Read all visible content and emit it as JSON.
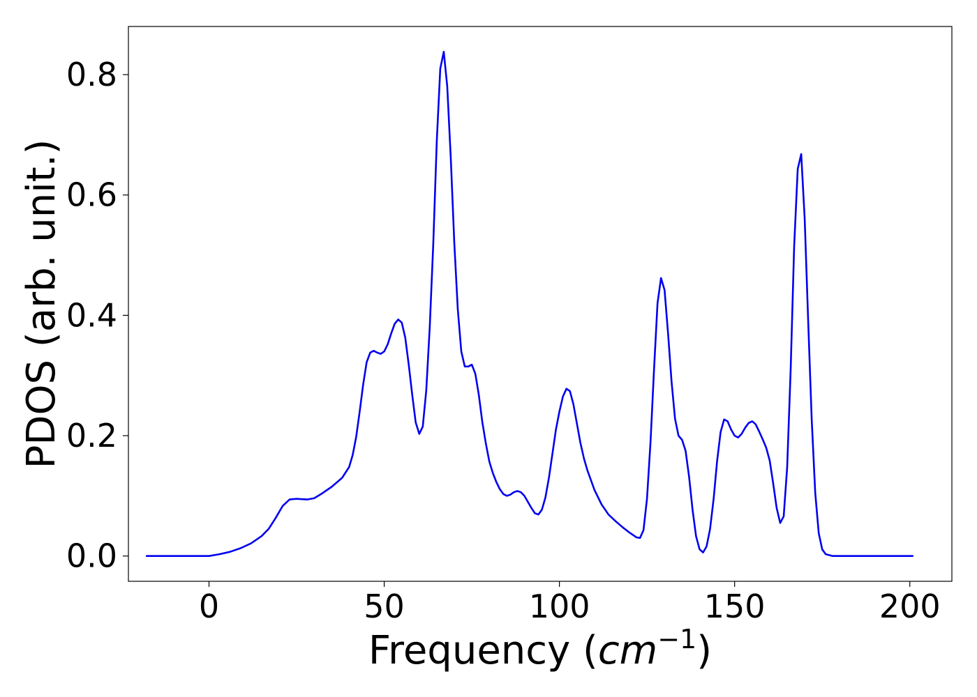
{
  "chart_data": {
    "type": "line",
    "title": "",
    "xlabel": "Frequency (",
    "xlabel_math": "cm",
    "xlabel_exp": "−1",
    "xlabel_close": ")",
    "ylabel": "PDOS (arb. unit.)",
    "xlim": [
      -23,
      212
    ],
    "ylim": [
      -0.042,
      0.88
    ],
    "xticks": [
      0,
      50,
      100,
      150,
      200
    ],
    "yticks": [
      0.0,
      0.2,
      0.4,
      0.6,
      0.8
    ],
    "xtick_labels": [
      "0",
      "50",
      "100",
      "150",
      "200"
    ],
    "ytick_labels": [
      "0.0",
      "0.2",
      "0.4",
      "0.6",
      "0.8"
    ],
    "grid": false,
    "legend": "none",
    "series": [
      {
        "color": "#0000ee",
        "points": [
          [
            -18,
            0
          ],
          [
            -10,
            0
          ],
          [
            0,
            0
          ],
          [
            3,
            0.003
          ],
          [
            6,
            0.007
          ],
          [
            9,
            0.013
          ],
          [
            12,
            0.021
          ],
          [
            15,
            0.033
          ],
          [
            17,
            0.045
          ],
          [
            19,
            0.063
          ],
          [
            21,
            0.083
          ],
          [
            23,
            0.094
          ],
          [
            25,
            0.095
          ],
          [
            28,
            0.094
          ],
          [
            30,
            0.096
          ],
          [
            32,
            0.103
          ],
          [
            35,
            0.115
          ],
          [
            38,
            0.13
          ],
          [
            40,
            0.148
          ],
          [
            41,
            0.168
          ],
          [
            42,
            0.198
          ],
          [
            43,
            0.24
          ],
          [
            44,
            0.285
          ],
          [
            45,
            0.322
          ],
          [
            46,
            0.338
          ],
          [
            47,
            0.341
          ],
          [
            48,
            0.338
          ],
          [
            49,
            0.336
          ],
          [
            50,
            0.34
          ],
          [
            51,
            0.352
          ],
          [
            52,
            0.37
          ],
          [
            53,
            0.386
          ],
          [
            54,
            0.393
          ],
          [
            55,
            0.388
          ],
          [
            56,
            0.363
          ],
          [
            57,
            0.318
          ],
          [
            58,
            0.268
          ],
          [
            59,
            0.222
          ],
          [
            60,
            0.203
          ],
          [
            61,
            0.215
          ],
          [
            62,
            0.275
          ],
          [
            63,
            0.38
          ],
          [
            64,
            0.52
          ],
          [
            65,
            0.69
          ],
          [
            66,
            0.81
          ],
          [
            67,
            0.838
          ],
          [
            68,
            0.78
          ],
          [
            69,
            0.66
          ],
          [
            70,
            0.52
          ],
          [
            71,
            0.41
          ],
          [
            72,
            0.34
          ],
          [
            73,
            0.315
          ],
          [
            74,
            0.315
          ],
          [
            75,
            0.318
          ],
          [
            76,
            0.303
          ],
          [
            77,
            0.268
          ],
          [
            78,
            0.223
          ],
          [
            79,
            0.187
          ],
          [
            80,
            0.157
          ],
          [
            81,
            0.138
          ],
          [
            82,
            0.123
          ],
          [
            83,
            0.111
          ],
          [
            84,
            0.103
          ],
          [
            85,
            0.1
          ],
          [
            86,
            0.102
          ],
          [
            87,
            0.106
          ],
          [
            88,
            0.108
          ],
          [
            89,
            0.106
          ],
          [
            90,
            0.1
          ],
          [
            91,
            0.09
          ],
          [
            92,
            0.08
          ],
          [
            93,
            0.071
          ],
          [
            94,
            0.069
          ],
          [
            95,
            0.077
          ],
          [
            96,
            0.097
          ],
          [
            97,
            0.13
          ],
          [
            98,
            0.17
          ],
          [
            99,
            0.21
          ],
          [
            100,
            0.24
          ],
          [
            101,
            0.265
          ],
          [
            102,
            0.278
          ],
          [
            103,
            0.274
          ],
          [
            104,
            0.252
          ],
          [
            105,
            0.22
          ],
          [
            106,
            0.188
          ],
          [
            107,
            0.162
          ],
          [
            108,
            0.142
          ],
          [
            110,
            0.11
          ],
          [
            112,
            0.086
          ],
          [
            114,
            0.069
          ],
          [
            116,
            0.058
          ],
          [
            118,
            0.048
          ],
          [
            120,
            0.039
          ],
          [
            122,
            0.031
          ],
          [
            123,
            0.03
          ],
          [
            124,
            0.043
          ],
          [
            125,
            0.095
          ],
          [
            126,
            0.19
          ],
          [
            127,
            0.31
          ],
          [
            128,
            0.42
          ],
          [
            129,
            0.462
          ],
          [
            130,
            0.442
          ],
          [
            131,
            0.37
          ],
          [
            132,
            0.29
          ],
          [
            133,
            0.228
          ],
          [
            134,
            0.2
          ],
          [
            135,
            0.193
          ],
          [
            136,
            0.175
          ],
          [
            137,
            0.132
          ],
          [
            138,
            0.077
          ],
          [
            139,
            0.033
          ],
          [
            140,
            0.011
          ],
          [
            141,
            0.006
          ],
          [
            142,
            0.016
          ],
          [
            143,
            0.045
          ],
          [
            144,
            0.095
          ],
          [
            145,
            0.158
          ],
          [
            146,
            0.206
          ],
          [
            147,
            0.227
          ],
          [
            148,
            0.224
          ],
          [
            149,
            0.21
          ],
          [
            150,
            0.2
          ],
          [
            151,
            0.197
          ],
          [
            152,
            0.203
          ],
          [
            153,
            0.213
          ],
          [
            154,
            0.221
          ],
          [
            155,
            0.224
          ],
          [
            156,
            0.219
          ],
          [
            157,
            0.207
          ],
          [
            158,
            0.194
          ],
          [
            159,
            0.18
          ],
          [
            160,
            0.159
          ],
          [
            161,
            0.121
          ],
          [
            162,
            0.08
          ],
          [
            163,
            0.055
          ],
          [
            164,
            0.066
          ],
          [
            165,
            0.148
          ],
          [
            166,
            0.31
          ],
          [
            167,
            0.515
          ],
          [
            168,
            0.643
          ],
          [
            169,
            0.668
          ],
          [
            170,
            0.56
          ],
          [
            171,
            0.39
          ],
          [
            172,
            0.228
          ],
          [
            173,
            0.105
          ],
          [
            174,
            0.038
          ],
          [
            175,
            0.011
          ],
          [
            176,
            0.003
          ],
          [
            178,
            0
          ],
          [
            190,
            0
          ],
          [
            201,
            0
          ]
        ]
      }
    ]
  }
}
